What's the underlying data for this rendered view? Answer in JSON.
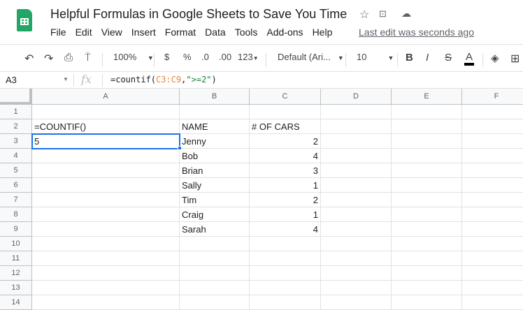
{
  "app": {
    "title": "Helpful Formulas in Google Sheets to Save You Time",
    "last_edit": "Last edit was seconds ago"
  },
  "menu": [
    "File",
    "Edit",
    "View",
    "Insert",
    "Format",
    "Data",
    "Tools",
    "Add-ons",
    "Help"
  ],
  "toolbar": {
    "zoom": "100%",
    "currency": "$",
    "percent": "%",
    "dec_less": ".0",
    "dec_more": ".00",
    "more_formats": "123",
    "font": "Default (Ari...",
    "font_size": "10",
    "bold": "B",
    "italic": "I",
    "strike": "S",
    "text_color": "A"
  },
  "formula_bar": {
    "name_box": "A3",
    "fx": "fx",
    "formula_prefix": "=countif(",
    "formula_range": "C3:C9",
    "formula_comma": ",",
    "formula_str": "\">=2\"",
    "formula_suffix": ")"
  },
  "columns": [
    "A",
    "B",
    "C",
    "D",
    "E",
    "F"
  ],
  "rows": [
    "1",
    "2",
    "3",
    "4",
    "5",
    "6",
    "7",
    "8",
    "9",
    "10",
    "11",
    "12",
    "13",
    "14"
  ],
  "cells": [
    [
      "",
      "",
      "",
      "",
      "",
      ""
    ],
    [
      "=COUNTIF()",
      "NAME",
      "# OF CARS",
      "",
      "",
      ""
    ],
    [
      "5",
      "Jenny",
      "2",
      "",
      "",
      ""
    ],
    [
      "",
      "Bob",
      "4",
      "",
      "",
      ""
    ],
    [
      "",
      "Brian",
      "3",
      "",
      "",
      ""
    ],
    [
      "",
      "Sally",
      "1",
      "",
      "",
      ""
    ],
    [
      "",
      "Tim",
      "2",
      "",
      "",
      ""
    ],
    [
      "",
      "Craig",
      "1",
      "",
      "",
      ""
    ],
    [
      "",
      "Sarah",
      "4",
      "",
      "",
      ""
    ],
    [
      "",
      "",
      "",
      "",
      "",
      ""
    ],
    [
      "",
      "",
      "",
      "",
      "",
      ""
    ],
    [
      "",
      "",
      "",
      "",
      "",
      ""
    ],
    [
      "",
      "",
      "",
      "",
      "",
      ""
    ],
    [
      "",
      "",
      "",
      "",
      "",
      ""
    ]
  ],
  "selected_cell": "A3",
  "colors": {
    "accent": "#1a73e8",
    "sheets_green": "#23a566",
    "range_ref": "#e8833a",
    "string_lit": "#188038"
  }
}
